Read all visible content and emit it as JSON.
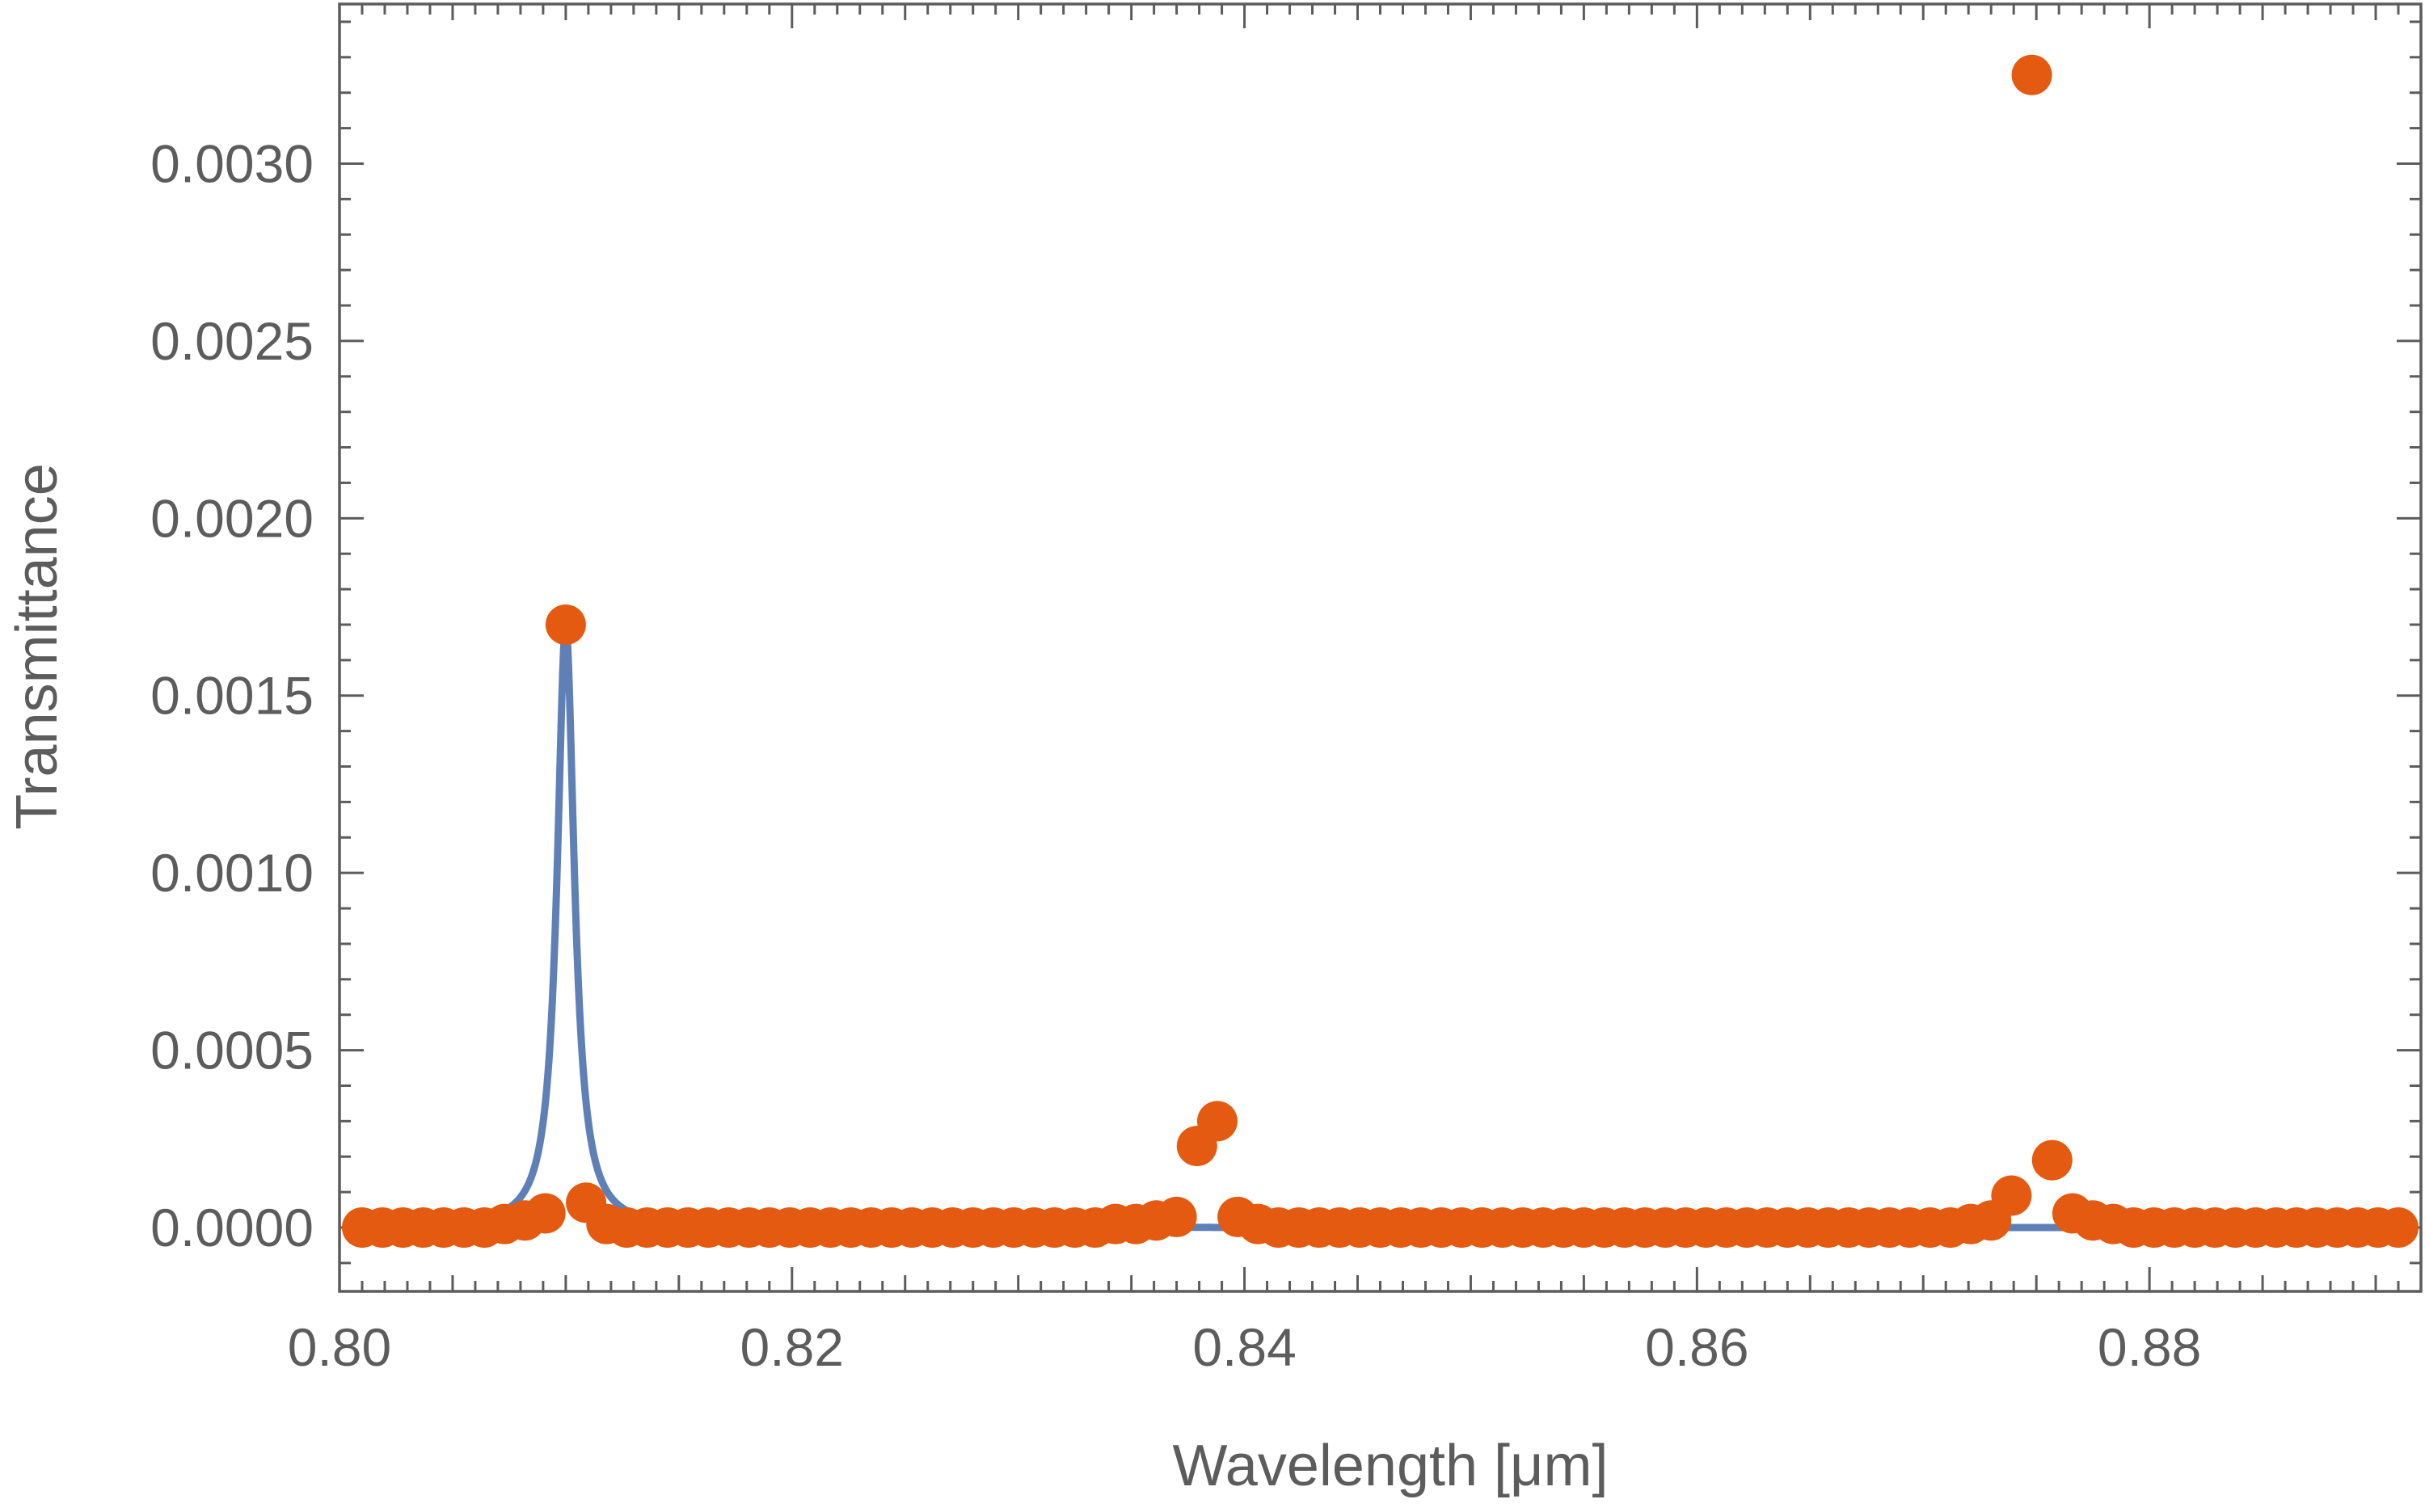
{
  "chart_data": {
    "type": "scatter",
    "title": "",
    "xlabel": "Wavelength [μm]",
    "ylabel": "Transmittance",
    "xlim": [
      0.8,
      0.892
    ],
    "ylim": [
      -0.00018,
      0.00345
    ],
    "x_ticks": [
      "0.80",
      "0.82",
      "0.84",
      "0.86",
      "0.88"
    ],
    "y_ticks": [
      "0.0000",
      "0.0005",
      "0.0010",
      "0.0015",
      "0.0020",
      "0.0025",
      "0.0030"
    ],
    "grid": false,
    "colors": {
      "line": "#5f80b6",
      "points": "#e35a10"
    },
    "series": [
      {
        "kind": "line",
        "peaks": [
          {
            "center": 0.81,
            "height": 0.0017,
            "half_width": 0.00046
          },
          {
            "center": 0.8395,
            "height": 0.0,
            "half_width": 0.0005
          },
          {
            "center": 0.8748,
            "height": 0.0,
            "half_width": 0.0005
          }
        ],
        "x_range": [
          0.8005,
          0.8915
        ]
      },
      {
        "kind": "points",
        "x": [
          0.801,
          0.8019,
          0.8028,
          0.8037,
          0.8046,
          0.8055,
          0.8064,
          0.8073,
          0.8082,
          0.8091,
          0.81,
          0.8109,
          0.8118,
          0.8127,
          0.8136,
          0.8145,
          0.8154,
          0.8163,
          0.8172,
          0.8181,
          0.819,
          0.8199,
          0.8208,
          0.8217,
          0.8226,
          0.8235,
          0.8244,
          0.8253,
          0.8262,
          0.8271,
          0.828,
          0.8289,
          0.8298,
          0.8307,
          0.8316,
          0.8325,
          0.8334,
          0.8343,
          0.8352,
          0.8361,
          0.837,
          0.8379,
          0.8388,
          0.8397,
          0.8406,
          0.8415,
          0.8424,
          0.8433,
          0.8442,
          0.8451,
          0.846,
          0.8469,
          0.8478,
          0.8487,
          0.8496,
          0.8505,
          0.8514,
          0.8523,
          0.8532,
          0.8541,
          0.855,
          0.8559,
          0.8568,
          0.8577,
          0.8586,
          0.8595,
          0.8604,
          0.8613,
          0.8622,
          0.8631,
          0.864,
          0.8649,
          0.8658,
          0.8667,
          0.8676,
          0.8685,
          0.8694,
          0.8703,
          0.8712,
          0.8721,
          0.873,
          0.8739,
          0.8748,
          0.8757,
          0.8766,
          0.8775,
          0.8784,
          0.8793,
          0.8802,
          0.8811,
          0.882,
          0.8829,
          0.8838,
          0.8847,
          0.8856,
          0.8865,
          0.8874,
          0.8883,
          0.8892,
          0.8901,
          0.891
        ],
        "y": [
          0,
          0,
          0,
          0,
          0,
          0,
          0,
          1e-05,
          2e-05,
          4e-05,
          0.0017,
          7e-05,
          1e-05,
          0,
          0,
          0,
          0,
          0,
          0,
          0,
          0,
          0,
          0,
          0,
          0,
          0,
          0,
          0,
          0,
          0,
          0,
          0,
          0,
          0,
          0,
          0,
          0,
          1e-05,
          1e-05,
          2e-05,
          3e-05,
          0.00023,
          0.0003,
          3e-05,
          1e-05,
          0,
          0,
          0,
          0,
          0,
          0,
          0,
          0,
          0,
          0,
          0,
          0,
          0,
          0,
          0,
          0,
          0,
          0,
          0,
          0,
          0,
          0,
          0,
          0,
          0,
          0,
          0,
          0,
          0,
          0,
          0,
          0,
          0,
          0,
          1e-05,
          2e-05,
          9e-05,
          0.00325,
          0.00019,
          4e-05,
          2e-05,
          1e-05,
          0,
          0,
          0,
          0,
          0,
          0,
          0,
          0,
          0,
          0,
          0,
          0,
          0,
          0
        ]
      }
    ]
  }
}
